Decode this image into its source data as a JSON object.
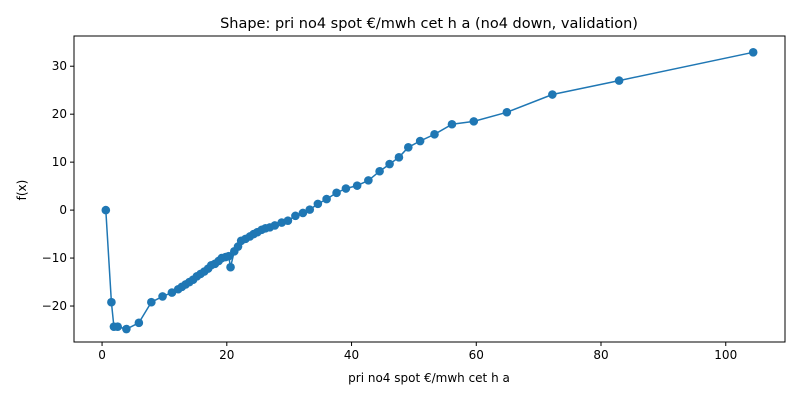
{
  "chart_data": {
    "type": "line",
    "title": "Shape: pri no4 spot €/mwh cet h a (no4 down, validation)",
    "xlabel": "pri no4 spot €/mwh cet h a",
    "ylabel": "f(x)",
    "xlim": [
      -4.5,
      109.5
    ],
    "ylim": [
      -27.5,
      36.3
    ],
    "xticks": [
      0,
      20,
      40,
      60,
      80,
      100
    ],
    "yticks": [
      -20,
      -10,
      0,
      10,
      20,
      30
    ],
    "grid": false,
    "series": [
      {
        "color": "#1f77b4",
        "marker": "circle",
        "x": [
          0.6,
          1.5,
          1.9,
          2.5,
          3.9,
          5.9,
          7.9,
          9.7,
          11.2,
          12.2,
          12.8,
          13.4,
          14.0,
          14.6,
          15.2,
          15.8,
          16.4,
          17.0,
          17.5,
          18.1,
          18.7,
          19.2,
          19.8,
          20.3,
          20.6,
          21.2,
          21.8,
          22.3,
          23.0,
          23.7,
          24.3,
          24.9,
          25.6,
          26.2,
          26.9,
          27.7,
          28.8,
          29.8,
          31.0,
          32.2,
          33.3,
          34.6,
          36.0,
          37.6,
          39.1,
          40.9,
          42.7,
          44.5,
          46.1,
          47.6,
          49.1,
          51.0,
          53.3,
          56.1,
          59.6,
          64.9,
          72.2,
          82.9,
          104.4
        ],
        "y": [
          0.0,
          -19.2,
          -24.3,
          -24.3,
          -24.8,
          -23.5,
          -19.2,
          -18.0,
          -17.2,
          -16.5,
          -16.0,
          -15.5,
          -15.0,
          -14.5,
          -13.8,
          -13.3,
          -12.8,
          -12.2,
          -11.5,
          -11.2,
          -10.6,
          -10.0,
          -9.8,
          -9.6,
          -11.9,
          -8.6,
          -7.6,
          -6.4,
          -6.0,
          -5.5,
          -5.0,
          -4.6,
          -4.1,
          -3.8,
          -3.6,
          -3.2,
          -2.6,
          -2.2,
          -1.2,
          -0.6,
          0.1,
          1.3,
          2.3,
          3.6,
          4.5,
          5.1,
          6.2,
          8.1,
          9.6,
          11.0,
          13.1,
          14.4,
          15.8,
          17.9,
          18.5,
          20.4,
          24.1,
          27.0,
          32.9
        ]
      }
    ]
  }
}
